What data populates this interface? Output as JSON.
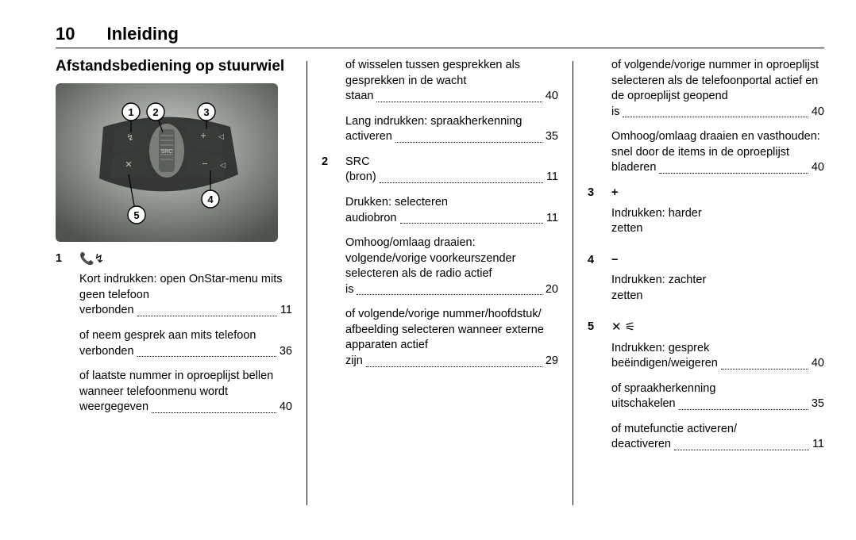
{
  "page_number": "10",
  "chapter_title": "Inleiding",
  "section_title": "Afstandsbediening op stuurwiel",
  "figure": {
    "callouts": [
      "1",
      "2",
      "3",
      "4",
      "5"
    ],
    "bg_gradient_from": "#c9cdc7",
    "bg_gradient_to": "#4a4f49",
    "button_fill": "#2d3030",
    "wheel_fill": "#6a6e68",
    "callout_fill": "#ffffff",
    "callout_stroke": "#000000"
  },
  "col1": {
    "items": [
      {
        "num": "1",
        "head_icon": "📞↯",
        "lines": [
          {
            "text": "Kort indrukken: open OnStar-menu mits geen telefoon verbonden",
            "page": "11"
          },
          {
            "text": "of neem gesprek aan mits telefoon verbonden",
            "page": "36"
          },
          {
            "text": "of laatste nummer in oproeplijst bellen wanneer telefoonmenu wordt weergegeven",
            "page": "40"
          }
        ]
      }
    ]
  },
  "col2": {
    "pre_lines": [
      {
        "text": "of wisselen tussen gesprekken als gesprekken in de wacht staan",
        "page": "40"
      },
      {
        "text": "Lang indrukken: spraakherkenning activeren",
        "page": "35"
      }
    ],
    "items": [
      {
        "num": "2",
        "head_row": {
          "text": "SRC (bron)",
          "page": "11"
        },
        "lines": [
          {
            "text": "Drukken: selecteren audiobron",
            "page": "11"
          },
          {
            "text": "Omhoog/omlaag draaien: volgende/vorige voorkeurszender selecteren als de radio actief is",
            "page": "20"
          },
          {
            "text": "of volgende/vorige nummer/hoofdstuk/ afbeelding selecteren wanneer externe apparaten actief zijn",
            "page": "29"
          }
        ]
      }
    ]
  },
  "col3": {
    "pre_lines": [
      {
        "text": "of volgende/vorige nummer in oproeplijst selecteren als de telefoonportal actief en de oproeplijst geopend is",
        "page": "40"
      },
      {
        "text": "Omhoog/omlaag draaien en vasthouden: snel door de items in de oproeplijst bladeren",
        "page": "40"
      }
    ],
    "items": [
      {
        "num": "3",
        "head_plain": "+",
        "lines": [
          {
            "text": "Indrukken: harder zetten",
            "page": ""
          }
        ]
      },
      {
        "num": "4",
        "head_plain": "−",
        "lines": [
          {
            "text": "Indrukken: zachter zetten",
            "page": ""
          }
        ]
      },
      {
        "num": "5",
        "head_icon": "✕ ⚟",
        "lines": [
          {
            "text": "Indrukken: gesprek beëindigen/weigeren",
            "page": "40"
          },
          {
            "text": "of spraakherkenning uitschakelen",
            "page": "35"
          },
          {
            "text": "of mutefunctie activeren/ deactiveren",
            "page": "11"
          }
        ]
      }
    ]
  }
}
